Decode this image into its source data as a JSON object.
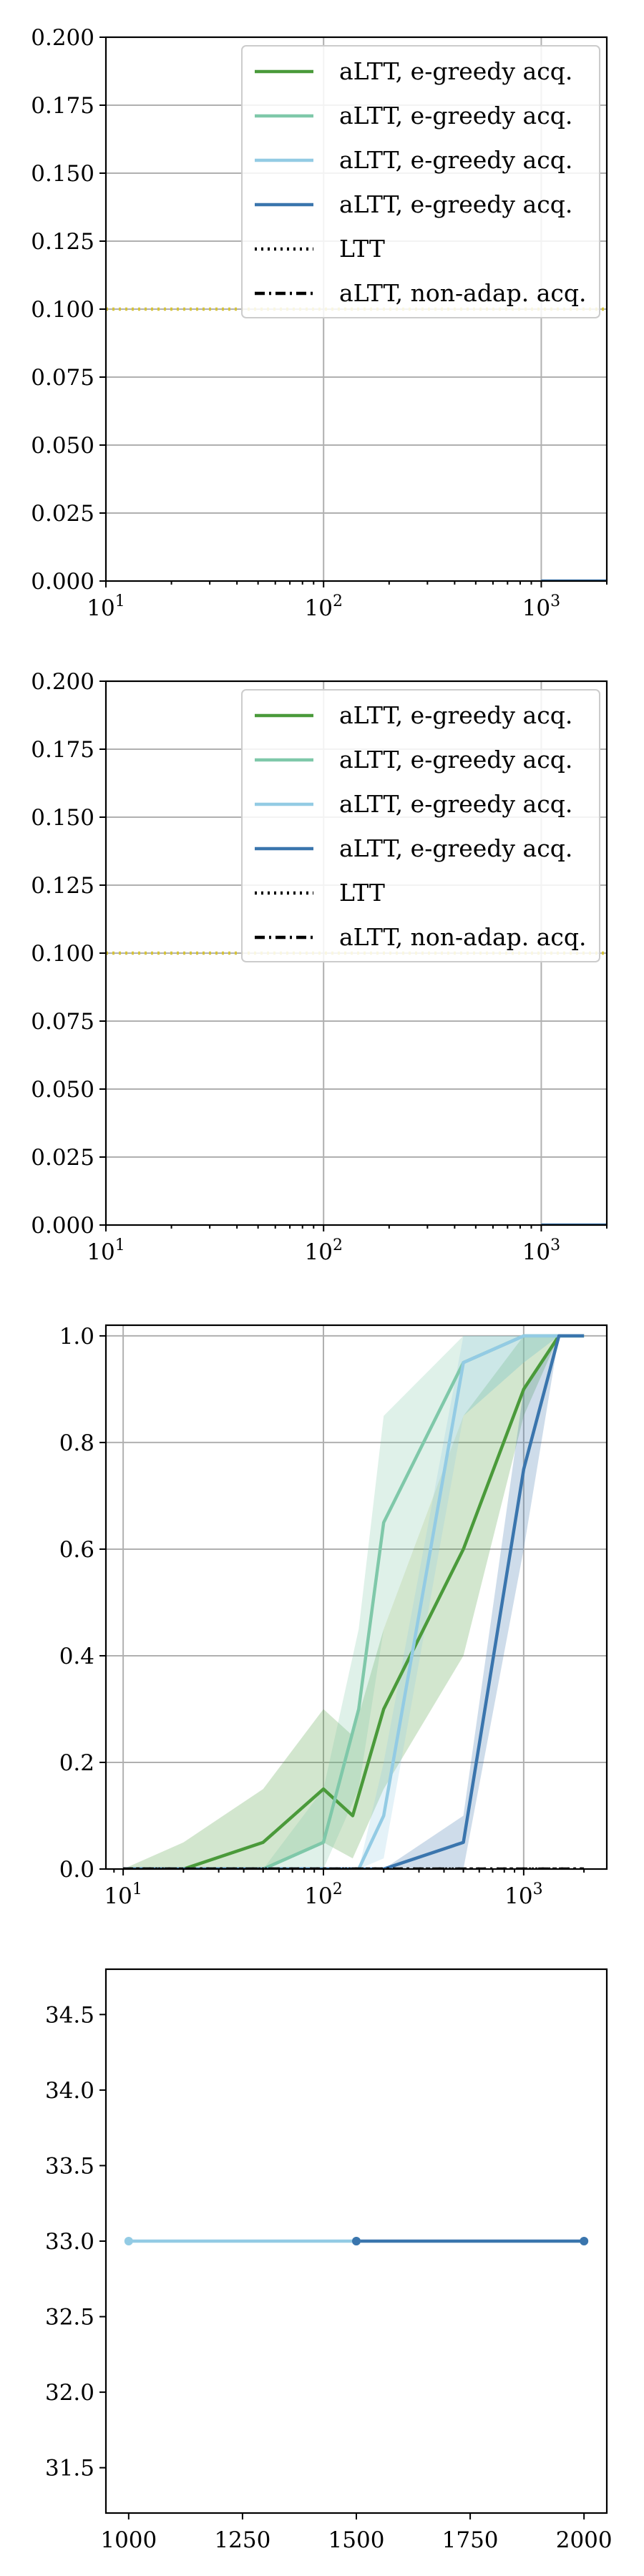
{
  "colors": {
    "green": "#4a9a3a",
    "teal": "#7fc8a9",
    "lightblue": "#93cbe4",
    "blue": "#3a75ad",
    "yellow": "#d6c43a",
    "black": "#000000",
    "grid": "#b0b0b0"
  },
  "chart_data": [
    {
      "type": "line",
      "xscale": "log",
      "xlim": [
        10,
        2000
      ],
      "ylim": [
        0,
        0.2
      ],
      "xticks": [
        10,
        100,
        1000
      ],
      "xtick_labels": [
        {
          "base": "10",
          "exp": "1"
        },
        {
          "base": "10",
          "exp": "2"
        },
        {
          "base": "10",
          "exp": "3"
        }
      ],
      "yticks": [
        "0.000",
        "0.025",
        "0.050",
        "0.075",
        "0.100",
        "0.125",
        "0.150",
        "0.175",
        "0.200"
      ],
      "grid": true,
      "legend_placement": "upper right",
      "legend": [
        {
          "label": "aLTT, e-greedy acq.",
          "color": "#4a9a3a",
          "style": "solid"
        },
        {
          "label": "aLTT, e-greedy acq.",
          "color": "#7fc8a9",
          "style": "solid"
        },
        {
          "label": "aLTT, e-greedy acq.",
          "color": "#93cbe4",
          "style": "solid"
        },
        {
          "label": "aLTT, e-greedy acq.",
          "color": "#3a75ad",
          "style": "solid"
        },
        {
          "label": "LTT",
          "color": "#000000",
          "style": "dotted"
        },
        {
          "label": "aLTT, non-adap. acq.",
          "color": "#000000",
          "style": "dashdot"
        }
      ],
      "series": [
        {
          "color": "#d6c43a",
          "style": "dotted",
          "x": [
            10,
            2000
          ],
          "y": [
            0.1,
            0.1
          ]
        },
        {
          "color": "#3a75ad",
          "style": "solid",
          "x": [
            1000,
            2000
          ],
          "y": [
            0.0,
            0.0
          ]
        }
      ]
    },
    {
      "type": "line",
      "xscale": "log",
      "xlim": [
        10,
        2000
      ],
      "ylim": [
        0,
        0.2
      ],
      "xticks": [
        10,
        100,
        1000
      ],
      "xtick_labels": [
        {
          "base": "10",
          "exp": "1"
        },
        {
          "base": "10",
          "exp": "2"
        },
        {
          "base": "10",
          "exp": "3"
        }
      ],
      "yticks": [
        "0.000",
        "0.025",
        "0.050",
        "0.075",
        "0.100",
        "0.125",
        "0.150",
        "0.175",
        "0.200"
      ],
      "grid": true,
      "legend_placement": "upper right",
      "legend": [
        {
          "label": "aLTT, e-greedy acq.",
          "color": "#4a9a3a",
          "style": "solid"
        },
        {
          "label": "aLTT, e-greedy acq.",
          "color": "#7fc8a9",
          "style": "solid"
        },
        {
          "label": "aLTT, e-greedy acq.",
          "color": "#93cbe4",
          "style": "solid"
        },
        {
          "label": "aLTT, e-greedy acq.",
          "color": "#3a75ad",
          "style": "solid"
        },
        {
          "label": "LTT",
          "color": "#000000",
          "style": "dotted"
        },
        {
          "label": "aLTT, non-adap. acq.",
          "color": "#000000",
          "style": "dashdot"
        }
      ],
      "series": [
        {
          "color": "#d6c43a",
          "style": "dotted",
          "x": [
            10,
            2000
          ],
          "y": [
            0.1,
            0.1
          ]
        },
        {
          "color": "#3a75ad",
          "style": "solid",
          "x": [
            1000,
            2000
          ],
          "y": [
            0.0,
            0.0
          ]
        }
      ]
    },
    {
      "type": "line",
      "xscale": "log",
      "xlim": [
        8.2,
        2600
      ],
      "ylim": [
        0,
        1.02
      ],
      "xticks": [
        10,
        100,
        1000
      ],
      "xtick_labels": [
        {
          "base": "10",
          "exp": "1"
        },
        {
          "base": "10",
          "exp": "2"
        },
        {
          "base": "10",
          "exp": "3"
        }
      ],
      "yticks": [
        "0.0",
        "0.2",
        "0.4",
        "0.6",
        "0.8",
        "1.0"
      ],
      "grid": true,
      "series": [
        {
          "color": "#4a9a3a",
          "style": "solid",
          "x": [
            10,
            20,
            50,
            100,
            140,
            200,
            500,
            1000,
            1500,
            2000
          ],
          "y": [
            0.0,
            0.0,
            0.05,
            0.15,
            0.1,
            0.3,
            0.6,
            0.9,
            1.0,
            1.0
          ],
          "band_low": [
            0.0,
            0.0,
            0.0,
            0.05,
            0.02,
            0.15,
            0.4,
            0.85,
            1.0,
            1.0
          ],
          "band_high": [
            0.0,
            0.05,
            0.15,
            0.3,
            0.25,
            0.45,
            0.85,
            1.0,
            1.0,
            1.0
          ]
        },
        {
          "color": "#7fc8a9",
          "style": "solid",
          "x": [
            10,
            50,
            100,
            150,
            200,
            500,
            1000,
            1500,
            2000
          ],
          "y": [
            0.0,
            0.0,
            0.05,
            0.3,
            0.65,
            0.95,
            1.0,
            1.0,
            1.0
          ],
          "band_low": [
            0.0,
            0.0,
            0.0,
            0.15,
            0.45,
            0.85,
            0.95,
            1.0,
            1.0
          ],
          "band_high": [
            0.0,
            0.0,
            0.15,
            0.45,
            0.85,
            1.0,
            1.0,
            1.0,
            1.0
          ]
        },
        {
          "color": "#93cbe4",
          "style": "solid",
          "x": [
            10,
            100,
            150,
            200,
            500,
            1000,
            1500,
            2000
          ],
          "y": [
            0.0,
            0.0,
            0.0,
            0.1,
            0.95,
            1.0,
            1.0,
            1.0
          ],
          "band_low": [
            0.0,
            0.0,
            0.0,
            0.02,
            0.85,
            0.95,
            1.0,
            1.0
          ],
          "band_high": [
            0.0,
            0.0,
            0.0,
            0.2,
            1.0,
            1.0,
            1.0,
            1.0
          ]
        },
        {
          "color": "#3a75ad",
          "style": "solid",
          "x": [
            10,
            200,
            500,
            1000,
            1500,
            2000
          ],
          "y": [
            0.0,
            0.0,
            0.05,
            0.75,
            1.0,
            1.0
          ],
          "band_low": [
            0.0,
            0.0,
            0.0,
            0.6,
            1.0,
            1.0
          ],
          "band_high": [
            0.0,
            0.0,
            0.1,
            0.9,
            1.0,
            1.0
          ]
        },
        {
          "color": "#000000",
          "style": "dotted",
          "x": [
            10,
            2000
          ],
          "y": [
            0.0,
            0.0
          ]
        },
        {
          "color": "#000000",
          "style": "dashdot",
          "x": [
            10,
            2000
          ],
          "y": [
            0.0,
            0.0
          ]
        }
      ]
    },
    {
      "type": "line",
      "xscale": "linear",
      "xlim": [
        950,
        2050
      ],
      "ylim": [
        31.2,
        34.8
      ],
      "xticks": [
        1000,
        1250,
        1500,
        1750,
        2000
      ],
      "xtick_labels": [
        "1000",
        "1250",
        "1500",
        "1750",
        "2000"
      ],
      "yticks": [
        31.5,
        32.0,
        32.5,
        33.0,
        33.5,
        34.0,
        34.5
      ],
      "ytick_labels": [
        "31.5",
        "32.0",
        "32.5",
        "33.0",
        "33.5",
        "34.0",
        "34.5"
      ],
      "grid": false,
      "series": [
        {
          "color": "#93cbe4",
          "style": "solid",
          "marker": "dot",
          "x": [
            1000,
            1500
          ],
          "y": [
            33.0,
            33.0
          ]
        },
        {
          "color": "#3a75ad",
          "style": "solid",
          "marker": "dot",
          "x": [
            1500,
            2000
          ],
          "y": [
            33.0,
            33.0
          ]
        }
      ]
    }
  ]
}
